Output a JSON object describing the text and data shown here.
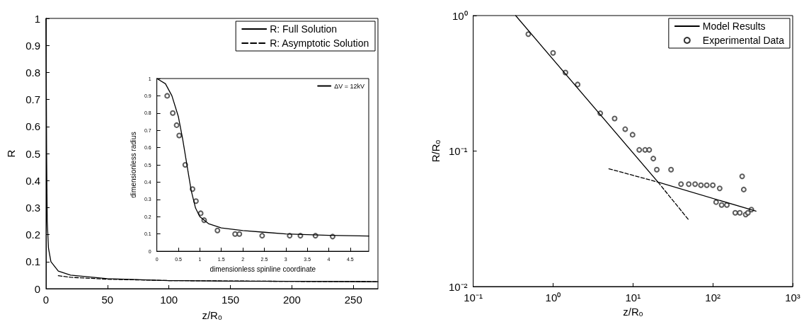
{
  "chart_data": [
    {
      "type": "line",
      "xlabel": "z/Rₒ",
      "ylabel": "R",
      "xlim": [
        0,
        270
      ],
      "xticks": [
        0,
        50,
        100,
        150,
        200,
        250
      ],
      "ylim": [
        0,
        1
      ],
      "yticks": [
        0,
        0.1,
        0.2,
        0.3,
        0.4,
        0.5,
        0.6,
        0.7,
        0.8,
        0.9,
        1
      ],
      "legend": "top right",
      "series": [
        {
          "name": "R: Full Solution",
          "color": "#000000",
          "line_style": "solid",
          "marker": "none",
          "x": [
            0,
            0.5,
            1,
            2,
            4,
            10,
            20,
            50,
            100,
            150,
            200,
            270
          ],
          "values": [
            1,
            0.5,
            0.25,
            0.15,
            0.1,
            0.065,
            0.05,
            0.037,
            0.03,
            0.028,
            0.027,
            0.026
          ]
        },
        {
          "name": "R: Asymptotic Solution",
          "color": "#000000",
          "line_style": "dashed",
          "marker": "none",
          "x": [
            10,
            20,
            50,
            100,
            200,
            270
          ],
          "values": [
            0.048,
            0.042,
            0.035,
            0.03,
            0.027,
            0.026
          ]
        }
      ]
    },
    {
      "type": "line",
      "xlabel": "dimensionless spinline coordinate",
      "ylabel": "dimensionless radius",
      "xlim": [
        0,
        4.93
      ],
      "xticks": [
        0,
        0.5,
        1,
        1.5,
        2,
        2.5,
        3,
        3.5,
        4,
        4.5
      ],
      "ylim": [
        0,
        1
      ],
      "yticks": [
        0,
        0.1,
        0.2,
        0.3,
        0.4,
        0.5,
        0.6,
        0.7,
        0.8,
        0.9,
        1
      ],
      "legend": "top right",
      "series": [
        {
          "name": "ΔV = 12kV",
          "color": "#000000",
          "line_style": "solid",
          "marker": "none",
          "x": [
            0,
            0.2,
            0.35,
            0.5,
            0.6,
            0.7,
            0.8,
            0.9,
            1,
            1.2,
            1.5,
            2,
            2.5,
            3,
            4,
            4.93
          ],
          "values": [
            1,
            0.97,
            0.9,
            0.78,
            0.65,
            0.5,
            0.35,
            0.25,
            0.2,
            0.16,
            0.135,
            0.12,
            0.11,
            0.1,
            0.092,
            0.088
          ]
        },
        {
          "type": "scatter",
          "color": "#333333",
          "marker": "circle",
          "x": [
            0.24,
            0.37,
            0.46,
            0.52,
            0.66,
            0.83,
            0.91,
            1.02,
            1.1,
            1.41,
            1.82,
            1.92,
            2.45,
            3.09,
            3.34,
            3.69,
            4.09
          ],
          "values": [
            0.9,
            0.8,
            0.73,
            0.67,
            0.5,
            0.36,
            0.29,
            0.22,
            0.18,
            0.12,
            0.1,
            0.1,
            0.09,
            0.09,
            0.09,
            0.09,
            0.085
          ]
        }
      ]
    },
    {
      "type": "line",
      "xlabel": "z/Rₒ",
      "ylabel": "R/Rₒ",
      "log": "xy",
      "xlim": [
        0.1,
        1000
      ],
      "xticks": [
        {
          "value": 0.1,
          "label": "10⁻¹"
        },
        {
          "value": 1,
          "label": "10⁰"
        },
        {
          "value": 10,
          "label": "10¹"
        },
        {
          "value": 100,
          "label": "10²"
        },
        {
          "value": 1000,
          "label": "10³"
        }
      ],
      "ylim": [
        0.01,
        1
      ],
      "yticks": [
        {
          "value": 0.01,
          "label": "10⁻²"
        },
        {
          "value": 0.1,
          "label": "10⁻¹"
        },
        {
          "value": 1,
          "label": "10⁰"
        }
      ],
      "legend": "top right",
      "series": [
        {
          "name": "Model Results",
          "color": "#000000",
          "line_style": "solid",
          "marker": "none",
          "x": [
            0.34,
            20.6,
            347
          ],
          "values": [
            1,
            0.059,
            0.036
          ]
        },
        {
          "color": "#000000",
          "line_style": "dashed",
          "marker": "none",
          "x": [
            5,
            20.6
          ],
          "values": [
            0.074,
            0.059
          ]
        },
        {
          "color": "#000000",
          "line_style": "dashed",
          "marker": "none",
          "x": [
            20.6,
            50
          ],
          "values": [
            0.059,
            0.031
          ]
        },
        {
          "name": "Experimental Data",
          "type": "scatter",
          "color": "#333333",
          "marker": "circle",
          "x": [
            0.49,
            1,
            1.43,
            2.03,
            3.9,
            5.9,
            8,
            9.9,
            12,
            14.2,
            16,
            18,
            19.9,
            30,
            40,
            50,
            60,
            71,
            84,
            100,
            122,
            110,
            129,
            150,
            191,
            218,
            233,
            244,
            258,
            275,
            304
          ],
          "values": [
            0.73,
            0.53,
            0.38,
            0.31,
            0.19,
            0.174,
            0.145,
            0.132,
            0.102,
            0.102,
            0.102,
            0.088,
            0.073,
            0.073,
            0.057,
            0.057,
            0.057,
            0.056,
            0.056,
            0.056,
            0.053,
            0.042,
            0.04,
            0.04,
            0.035,
            0.035,
            0.065,
            0.052,
            0.034,
            0.035,
            0.037
          ]
        }
      ]
    }
  ]
}
